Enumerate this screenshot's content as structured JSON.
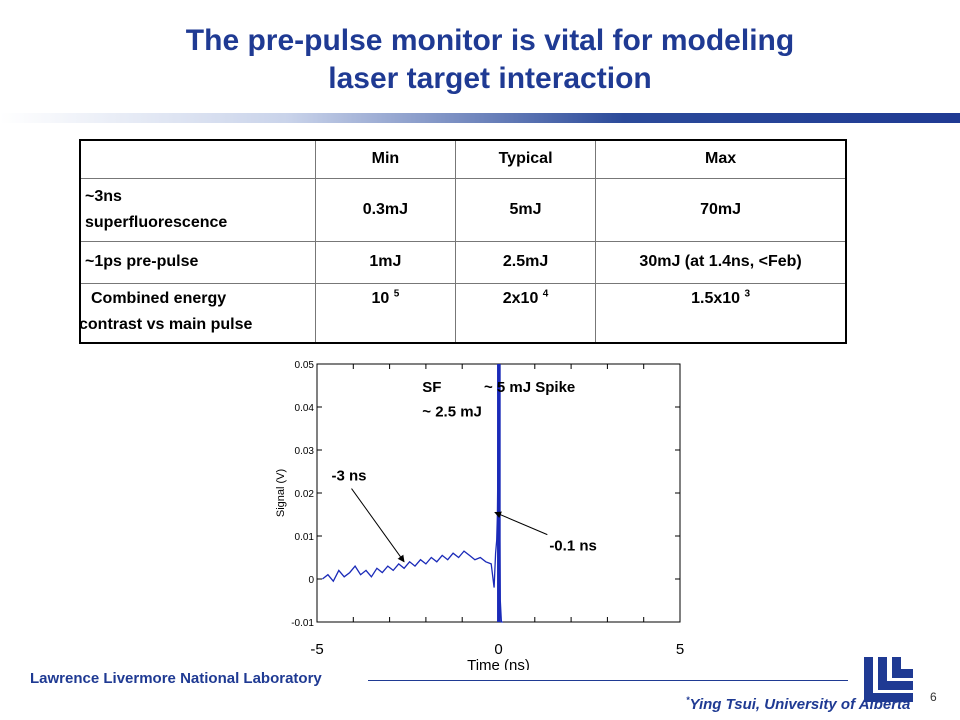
{
  "slide": {
    "title_line1": "The pre-pulse monitor is vital for modeling",
    "title_line2": "laser target interaction"
  },
  "table": {
    "headers": [
      "",
      "Min",
      "Typical",
      "Max"
    ],
    "rows": [
      {
        "label_line1": "~3ns",
        "label_line2": "superfluorescence",
        "min": "0.3mJ",
        "typical": "5mJ",
        "max": "70mJ"
      },
      {
        "label_line1": "~1ps pre-pulse",
        "min": "1mJ",
        "typical": "2.5mJ",
        "max": "30mJ (at 1.4ns, <Feb)"
      },
      {
        "label_line1": "Combined energy",
        "label_line2": "contrast vs main pulse",
        "min_base": "10",
        "min_exp": "5",
        "typical_base": "2x10",
        "typical_exp": "4",
        "max_base": "1.5x10",
        "max_exp": "3"
      }
    ]
  },
  "chart_data": {
    "type": "line",
    "xlabel": "Time (ns)",
    "ylabel": "Signal (V)",
    "xlim": [
      -5,
      5
    ],
    "ylim": [
      -0.01,
      0.05
    ],
    "x_ticks": [
      "-5",
      "0",
      "5"
    ],
    "y_ticks": [
      "-0.01",
      "0",
      "0.01",
      "0.02",
      "0.03",
      "0.04",
      "0.05"
    ],
    "series": [
      {
        "color": "#1a2ab8",
        "x": [
          -4.85,
          -4.7,
          -4.55,
          -4.4,
          -4.25,
          -4.1,
          -3.95,
          -3.8,
          -3.65,
          -3.5,
          -3.35,
          -3.2,
          -3.05,
          -2.9,
          -2.75,
          -2.6,
          -2.45,
          -2.3,
          -2.15,
          -2.0,
          -1.85,
          -1.7,
          -1.55,
          -1.4,
          -1.25,
          -1.1,
          -0.95,
          -0.8,
          -0.65,
          -0.5,
          -0.35,
          -0.2,
          -0.12,
          -0.08,
          -0.05,
          -0.03,
          -0.02,
          -0.01,
          0.0,
          0.02,
          0.05,
          0.08,
          0.12
        ],
        "y": [
          0.0,
          0.001,
          -0.0005,
          0.002,
          0.0005,
          0.0015,
          0.003,
          0.001,
          0.002,
          0.0005,
          0.0025,
          0.0015,
          0.003,
          0.002,
          0.0035,
          0.0025,
          0.004,
          0.003,
          0.0045,
          0.0035,
          0.005,
          0.004,
          0.0055,
          0.0045,
          0.006,
          0.005,
          0.0065,
          0.0055,
          0.0045,
          0.005,
          0.004,
          0.0035,
          -0.002,
          0.006,
          0.009,
          0.015,
          0.024,
          0.035,
          0.05,
          0.03,
          -0.005,
          -0.01,
          -0.01
        ]
      }
    ],
    "annotations": [
      {
        "text": "SF",
        "at_ns": -2.1,
        "y": 0.0435
      },
      {
        "text": "~ 5 mJ Spike",
        "at_ns": -0.4,
        "y": 0.0435
      },
      {
        "text": "~ 2.5 mJ",
        "at_ns": -2.1,
        "y": 0.0378
      },
      {
        "text": "-3 ns",
        "at_ns": -4.6,
        "y": 0.0229,
        "arrow_to": [
          -2.6,
          0.004
        ]
      },
      {
        "text": "-0.1 ns",
        "at_ns": 1.4,
        "y": 0.0066,
        "arrow_to": [
          -0.1,
          0.0155
        ]
      }
    ]
  },
  "footer": {
    "lab": "Lawrence Livermore National Laboratory",
    "credit_mark": "*",
    "credit": "Ying Tsui, University of Alberta",
    "page": "6"
  },
  "colors": {
    "title": "#1f3a93",
    "trace": "#1a2ab8"
  }
}
